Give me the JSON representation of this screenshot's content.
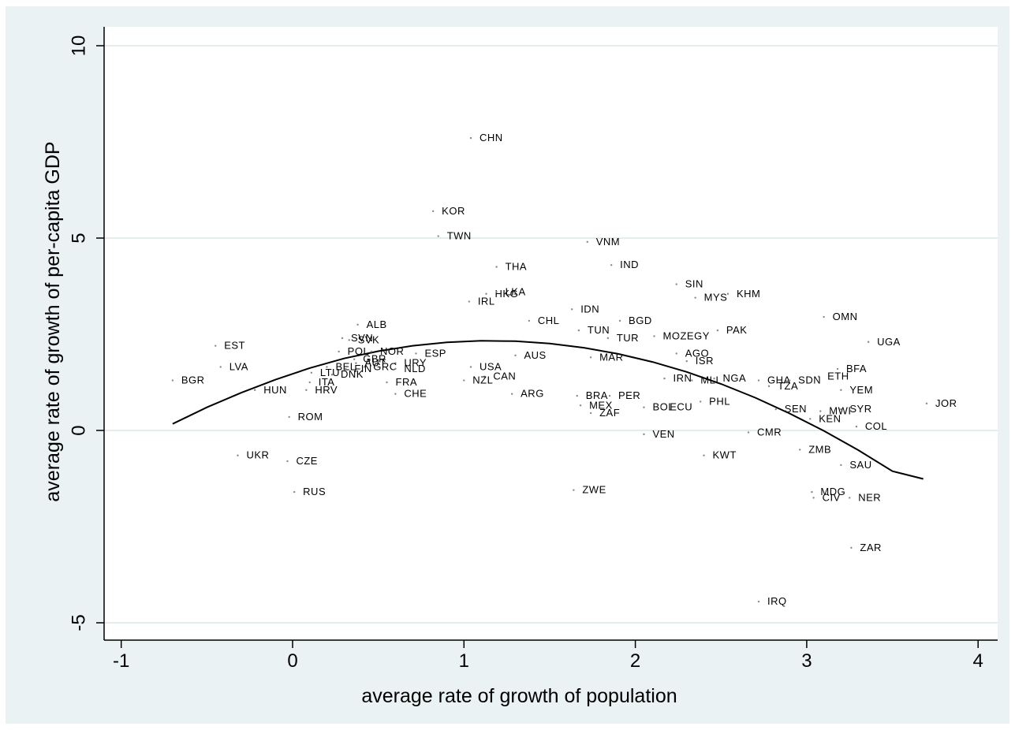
{
  "chart_data": {
    "type": "scatter",
    "xlabel": "average rate of growth of population",
    "ylabel": "average rate of growth of per-capita GDP",
    "xlim": [
      -1.1,
      4.05
    ],
    "ylim": [
      -5.2,
      10.5
    ],
    "xticks": [
      "-1",
      "0",
      "1",
      "2",
      "3",
      "4"
    ],
    "yticks": [
      "-5",
      "0",
      "5",
      "10"
    ],
    "grid": "horizontal",
    "points": [
      {
        "label": "CHN",
        "x": 1.04,
        "y": 7.6
      },
      {
        "label": "KOR",
        "x": 0.82,
        "y": 5.7
      },
      {
        "label": "TWN",
        "x": 0.85,
        "y": 5.05
      },
      {
        "label": "VNM",
        "x": 1.72,
        "y": 4.9
      },
      {
        "label": "THA",
        "x": 1.19,
        "y": 4.25
      },
      {
        "label": "IND",
        "x": 1.86,
        "y": 4.3
      },
      {
        "label": "SIN",
        "x": 2.24,
        "y": 3.8
      },
      {
        "label": "HKG",
        "x": 1.13,
        "y": 3.55
      },
      {
        "label": "LKA",
        "x": 1.19,
        "y": 3.6
      },
      {
        "label": "MYS",
        "x": 2.35,
        "y": 3.45
      },
      {
        "label": "KHM",
        "x": 2.54,
        "y": 3.55
      },
      {
        "label": "IRL",
        "x": 1.03,
        "y": 3.35
      },
      {
        "label": "IDN",
        "x": 1.63,
        "y": 3.15
      },
      {
        "label": "CHL",
        "x": 1.38,
        "y": 2.85
      },
      {
        "label": "BGD",
        "x": 1.91,
        "y": 2.85
      },
      {
        "label": "OMN",
        "x": 3.1,
        "y": 2.95
      },
      {
        "label": "ALB",
        "x": 0.38,
        "y": 2.75
      },
      {
        "label": "TUN",
        "x": 1.67,
        "y": 2.6
      },
      {
        "label": "PAK",
        "x": 2.48,
        "y": 2.6
      },
      {
        "label": "MOZ",
        "x": 2.11,
        "y": 2.45
      },
      {
        "label": "TUR",
        "x": 1.84,
        "y": 2.4
      },
      {
        "label": "EGY",
        "x": 2.25,
        "y": 2.45
      },
      {
        "label": "SVN",
        "x": 0.29,
        "y": 2.4
      },
      {
        "label": "SVK",
        "x": 0.33,
        "y": 2.35
      },
      {
        "label": "UGA",
        "x": 3.36,
        "y": 2.3
      },
      {
        "label": "EST",
        "x": -0.45,
        "y": 2.2
      },
      {
        "label": "POL",
        "x": 0.27,
        "y": 2.05
      },
      {
        "label": "NOR",
        "x": 0.46,
        "y": 2.05
      },
      {
        "label": "ESP",
        "x": 0.72,
        "y": 2.0
      },
      {
        "label": "AGO",
        "x": 2.24,
        "y": 2.0
      },
      {
        "label": "AUS",
        "x": 1.3,
        "y": 1.95
      },
      {
        "label": "MAR",
        "x": 1.74,
        "y": 1.9
      },
      {
        "label": "ISR",
        "x": 2.3,
        "y": 1.8
      },
      {
        "label": "GBR",
        "x": 0.36,
        "y": 1.85
      },
      {
        "label": "AUT",
        "x": 0.37,
        "y": 1.75
      },
      {
        "label": "URY",
        "x": 0.6,
        "y": 1.75
      },
      {
        "label": "GRC",
        "x": 0.42,
        "y": 1.65
      },
      {
        "label": "BEL",
        "x": 0.2,
        "y": 1.65
      },
      {
        "label": "FIN",
        "x": 0.31,
        "y": 1.6
      },
      {
        "label": "NLD",
        "x": 0.6,
        "y": 1.6
      },
      {
        "label": "USA",
        "x": 1.04,
        "y": 1.65
      },
      {
        "label": "LVA",
        "x": -0.42,
        "y": 1.65
      },
      {
        "label": "BFA",
        "x": 3.18,
        "y": 1.6
      },
      {
        "label": "LTU",
        "x": 0.11,
        "y": 1.5
      },
      {
        "label": "DNK",
        "x": 0.23,
        "y": 1.45
      },
      {
        "label": "CAN",
        "x": 1.12,
        "y": 1.4
      },
      {
        "label": "NGA",
        "x": 2.46,
        "y": 1.35
      },
      {
        "label": "ETH",
        "x": 3.07,
        "y": 1.4
      },
      {
        "label": "IRN",
        "x": 2.17,
        "y": 1.35
      },
      {
        "label": "MLI",
        "x": 2.33,
        "y": 1.3
      },
      {
        "label": "GHA",
        "x": 2.72,
        "y": 1.3
      },
      {
        "label": "SDN",
        "x": 2.9,
        "y": 1.3
      },
      {
        "label": "BGR",
        "x": -0.7,
        "y": 1.3
      },
      {
        "label": "NZL",
        "x": 1.0,
        "y": 1.3
      },
      {
        "label": "ITA",
        "x": 0.1,
        "y": 1.25
      },
      {
        "label": "FRA",
        "x": 0.55,
        "y": 1.25
      },
      {
        "label": "TZA",
        "x": 2.78,
        "y": 1.15
      },
      {
        "label": "YEM",
        "x": 3.2,
        "y": 1.05
      },
      {
        "label": "HUN",
        "x": -0.22,
        "y": 1.05
      },
      {
        "label": "HRV",
        "x": 0.08,
        "y": 1.05
      },
      {
        "label": "CHE",
        "x": 0.6,
        "y": 0.95
      },
      {
        "label": "ARG",
        "x": 1.28,
        "y": 0.95
      },
      {
        "label": "BRA",
        "x": 1.66,
        "y": 0.9
      },
      {
        "label": "PER",
        "x": 1.85,
        "y": 0.9
      },
      {
        "label": "PHL",
        "x": 2.38,
        "y": 0.75
      },
      {
        "label": "JOR",
        "x": 3.7,
        "y": 0.7
      },
      {
        "label": "MEX",
        "x": 1.68,
        "y": 0.65
      },
      {
        "label": "BOL",
        "x": 2.05,
        "y": 0.6
      },
      {
        "label": "ECU",
        "x": 2.15,
        "y": 0.6
      },
      {
        "label": "SYR",
        "x": 3.2,
        "y": 0.55
      },
      {
        "label": "SEN",
        "x": 2.82,
        "y": 0.55
      },
      {
        "label": "MWI",
        "x": 3.08,
        "y": 0.5
      },
      {
        "label": "ZAF",
        "x": 1.74,
        "y": 0.45
      },
      {
        "label": "ROM",
        "x": -0.02,
        "y": 0.35
      },
      {
        "label": "KEN",
        "x": 3.02,
        "y": 0.3
      },
      {
        "label": "COL",
        "x": 3.29,
        "y": 0.1
      },
      {
        "label": "VEN",
        "x": 2.05,
        "y": -0.1
      },
      {
        "label": "CMR",
        "x": 2.66,
        "y": -0.05
      },
      {
        "label": "ZMB",
        "x": 2.96,
        "y": -0.5
      },
      {
        "label": "UKR",
        "x": -0.32,
        "y": -0.65
      },
      {
        "label": "KWT",
        "x": 2.4,
        "y": -0.65
      },
      {
        "label": "CZE",
        "x": -0.03,
        "y": -0.8
      },
      {
        "label": "SAU",
        "x": 3.2,
        "y": -0.9
      },
      {
        "label": "ZWE",
        "x": 1.64,
        "y": -1.55
      },
      {
        "label": "RUS",
        "x": 0.01,
        "y": -1.6
      },
      {
        "label": "MDG",
        "x": 3.03,
        "y": -1.6
      },
      {
        "label": "CIV",
        "x": 3.04,
        "y": -1.75
      },
      {
        "label": "NER",
        "x": 3.25,
        "y": -1.75
      },
      {
        "label": "ZAR",
        "x": 3.26,
        "y": -3.05
      },
      {
        "label": "IRQ",
        "x": 2.72,
        "y": -4.45
      }
    ],
    "fit_line": {
      "x": [
        -0.7,
        -0.5,
        -0.3,
        -0.1,
        0.1,
        0.3,
        0.5,
        0.7,
        0.9,
        1.1,
        1.3,
        1.5,
        1.7,
        1.9,
        2.1,
        2.3,
        2.5,
        2.7,
        2.9,
        3.1,
        3.3,
        3.5,
        3.68
      ],
      "y": [
        0.17,
        0.6,
        0.98,
        1.32,
        1.62,
        1.87,
        2.06,
        2.2,
        2.29,
        2.33,
        2.32,
        2.26,
        2.15,
        1.99,
        1.78,
        1.52,
        1.21,
        0.85,
        0.44,
        -0.01,
        -0.51,
        -1.06,
        -1.26
      ]
    }
  }
}
